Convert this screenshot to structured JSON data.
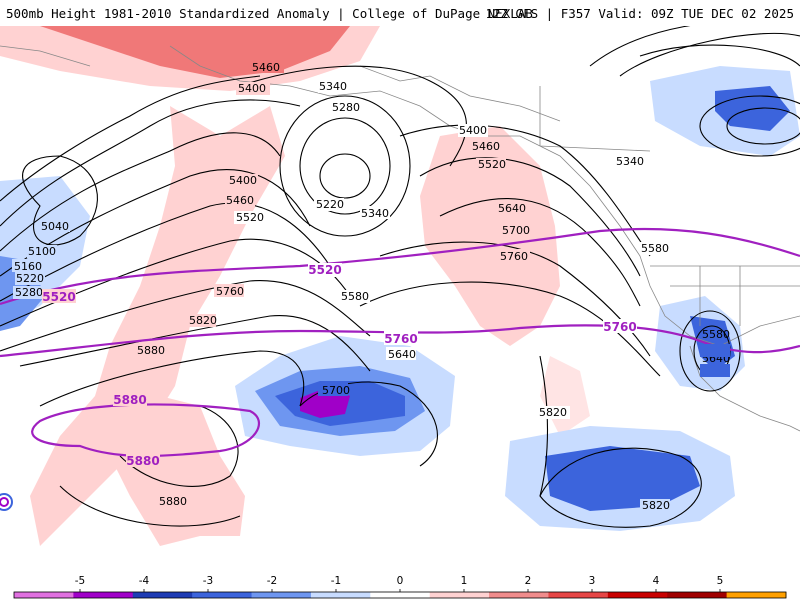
{
  "header": {
    "title_left": "500mb Height 1981-2010 Standardized Anomaly | College of DuPage NEXLAB",
    "title_right": "12Z GFS | F357 Valid: 09Z TUE DEC 02 2025"
  },
  "contour_labels": {
    "black": [
      "5460",
      "5400",
      "5340",
      "5280",
      "5220",
      "5340",
      "5400",
      "5460",
      "5520",
      "5400",
      "5460",
      "5520",
      "5580",
      "5640",
      "5700",
      "5760",
      "5640",
      "5700",
      "5760",
      "5820",
      "5880",
      "5580",
      "5640",
      "5820",
      "5880",
      "5820",
      "5340",
      "5580",
      "5040",
      "5100",
      "5160",
      "5220",
      "5280"
    ],
    "purple": [
      "5520",
      "5520",
      "5760",
      "5760",
      "5880",
      "5880"
    ]
  },
  "colorbar": {
    "labels": [
      "-5",
      "-4",
      "-3",
      "-2",
      "-1",
      "0",
      "1",
      "2",
      "3",
      "4",
      "5"
    ],
    "colors": [
      "#e070e0",
      "#a000c8",
      "#1e3cb4",
      "#3c64dc",
      "#6e96f0",
      "#c8dcff",
      "#ffffff",
      "#ffd2d2",
      "#f08c8c",
      "#e64646",
      "#c80000",
      "#a00000",
      "#ffa000"
    ]
  },
  "colors": {
    "black_contour": "#000000",
    "purple_contour": "#a020c0",
    "coast": "#888888"
  }
}
